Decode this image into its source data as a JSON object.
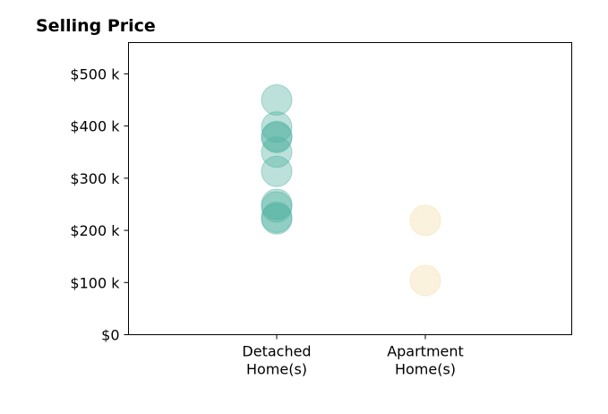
{
  "chart_data": {
    "type": "scatter",
    "title": "Selling Price",
    "xlabel": "",
    "ylabel": "",
    "ylim": [
      0,
      560000
    ],
    "y_ticks": [
      {
        "value": 0,
        "label": "$0"
      },
      {
        "value": 100000,
        "label": "$100 k"
      },
      {
        "value": 200000,
        "label": "$200 k"
      },
      {
        "value": 300000,
        "label": "$300 k"
      },
      {
        "value": 400000,
        "label": "$400 k"
      },
      {
        "value": 500000,
        "label": "$500 k"
      }
    ],
    "categories": [
      {
        "label_lines": [
          "Detached",
          "Home(s)"
        ]
      },
      {
        "label_lines": [
          "Apartment",
          "Home(s)"
        ]
      }
    ],
    "grid": false,
    "series": [
      {
        "category_index": 0,
        "color": "#4daf9f",
        "values": [
          450000,
          398000,
          380000,
          378000,
          350000,
          313000,
          250000,
          245000,
          225000,
          222000
        ]
      },
      {
        "category_index": 1,
        "color": "#f2dca5",
        "values": [
          219000,
          104000
        ]
      }
    ]
  }
}
